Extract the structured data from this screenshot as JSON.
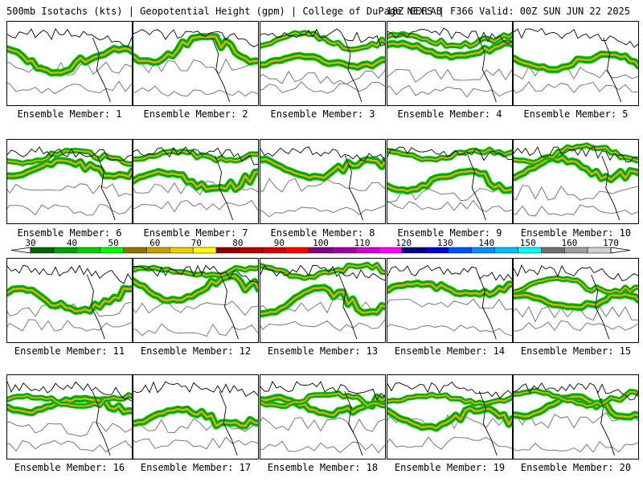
{
  "header": {
    "left": "500mb Isotachs (kts) | Geopotential Height (gpm) | College of DuPage NEXLAB",
    "right": "18Z GEFS | F366 Valid: 00Z SUN JUN 22 2025"
  },
  "members": [
    "Ensemble Member: 1",
    "Ensemble Member: 2",
    "Ensemble Member: 3",
    "Ensemble Member: 4",
    "Ensemble Member: 5",
    "Ensemble Member: 6",
    "Ensemble Member: 7",
    "Ensemble Member: 8",
    "Ensemble Member: 9",
    "Ensemble Member: 10",
    "Ensemble Member: 11",
    "Ensemble Member: 12",
    "Ensemble Member: 13",
    "Ensemble Member: 14",
    "Ensemble Member: 15",
    "Ensemble Member: 16",
    "Ensemble Member: 17",
    "Ensemble Member: 18",
    "Ensemble Member: 19",
    "Ensemble Member: 20"
  ],
  "colorbar": {
    "ticks": [
      "30",
      "40",
      "50",
      "60",
      "70",
      "80",
      "90",
      "100",
      "110",
      "120",
      "130",
      "140",
      "150",
      "160",
      "170"
    ],
    "colors": [
      "#006400",
      "#00a000",
      "#00d000",
      "#00ff00",
      "#8b7500",
      "#c8a000",
      "#e6d200",
      "#ffff00",
      "#8b0000",
      "#b40000",
      "#d20000",
      "#ff0000",
      "#800080",
      "#a000a0",
      "#d000d0",
      "#ff00ff",
      "#000080",
      "#0000cd",
      "#0050ff",
      "#0090ff",
      "#00bfff",
      "#00ffff",
      "#707070",
      "#a0a0a0",
      "#d0d0d0"
    ]
  }
}
